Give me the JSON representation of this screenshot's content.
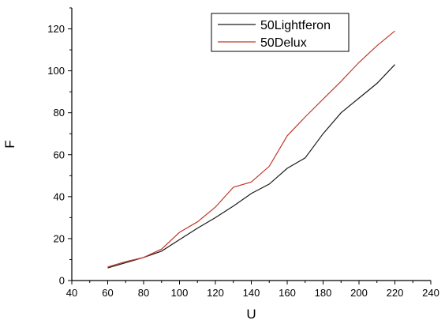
{
  "chart_data": {
    "type": "line",
    "title": "",
    "xlabel": "U",
    "ylabel": "F",
    "xlim": [
      40,
      240
    ],
    "ylim": [
      0,
      130
    ],
    "xticks": [
      40,
      60,
      80,
      100,
      120,
      140,
      160,
      180,
      200,
      220,
      240
    ],
    "yticks": [
      0,
      20,
      40,
      60,
      80,
      100,
      120
    ],
    "grid": false,
    "legend": "top-center",
    "series": [
      {
        "name": "50Lightferon",
        "color": "#1a1a1a",
        "x": [
          60,
          70,
          80,
          90,
          100,
          110,
          120,
          130,
          140,
          150,
          160,
          170,
          180,
          190,
          200,
          210,
          220
        ],
        "y": [
          6,
          8.5,
          11,
          14,
          19.5,
          25,
          30,
          35.5,
          41.5,
          46,
          53.5,
          58.5,
          70,
          80,
          87,
          94,
          103
        ]
      },
      {
        "name": "50Delux",
        "color": "#c0392b",
        "x": [
          60,
          70,
          80,
          90,
          100,
          110,
          120,
          130,
          140,
          150,
          160,
          170,
          180,
          190,
          200,
          210,
          220
        ],
        "y": [
          6.5,
          9,
          11,
          15,
          23,
          28,
          35,
          44.5,
          47,
          54.5,
          69,
          78,
          86.5,
          95,
          104,
          112,
          119
        ]
      }
    ]
  }
}
